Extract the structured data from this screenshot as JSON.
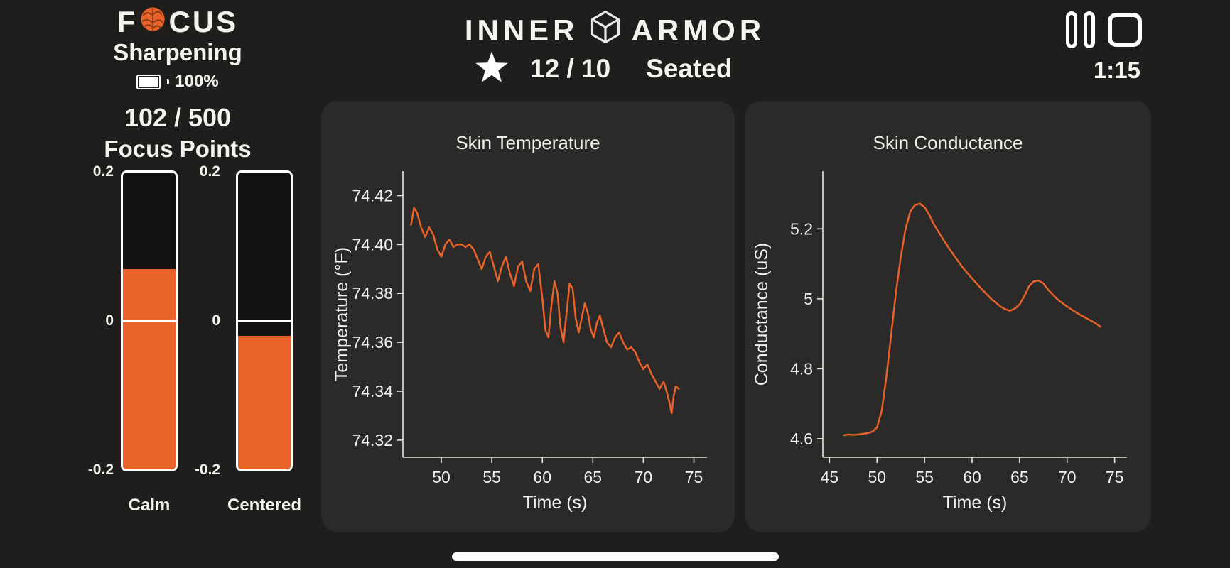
{
  "left_panel": {
    "brand_f": "F",
    "brand_cus": "CUS",
    "mode": "Sharpening",
    "battery": "100%",
    "points_value": "102 / 500",
    "points_label": "Focus Points"
  },
  "header": {
    "title_left": "INNER",
    "title_right": "ARMOR",
    "score": "12 / 10",
    "posture": "Seated",
    "timer": "1:15"
  },
  "gauges": {
    "scale_top": "0.2",
    "scale_zero": "0",
    "scale_bottom": "-0.2",
    "items": [
      {
        "label": "Calm",
        "value": 0.07,
        "min": -0.2,
        "max": 0.2
      },
      {
        "label": "Centered",
        "value": -0.02,
        "min": -0.2,
        "max": 0.2
      }
    ]
  },
  "colors": {
    "accent_orange": "#E8622A",
    "background": "#201E1C",
    "card_background": "#2C2A28",
    "text": "#F5F3F0"
  },
  "icons": {
    "brain": "brain-icon",
    "cube": "cube-icon",
    "star": "star-icon",
    "pause": "pause-icon",
    "stop": "stop-icon",
    "battery": "battery-icon"
  },
  "chart_data": [
    {
      "type": "line",
      "title": "Skin Temperature",
      "xlabel": "Time (s)",
      "ylabel": "Temperature (°F)",
      "xlim": [
        46.2,
        76.3
      ],
      "ylim": [
        74.313,
        74.43
      ],
      "xticks": [
        50,
        55,
        60,
        65,
        70,
        75
      ],
      "xtick_labels": [
        "50",
        "55",
        "60",
        "65",
        "70",
        "75"
      ],
      "yticks": [
        74.32,
        74.34,
        74.36,
        74.38,
        74.4,
        74.42
      ],
      "ytick_labels": [
        "74.32",
        "74.34",
        "74.36",
        "74.38",
        "74.40",
        "74.42"
      ],
      "line_color": "#E8622A",
      "grid": false,
      "legend": false,
      "x": [
        47.0,
        47.3,
        47.6,
        48.0,
        48.4,
        48.8,
        49.2,
        49.6,
        50.0,
        50.4,
        50.8,
        51.2,
        51.6,
        52.0,
        52.4,
        52.8,
        53.2,
        53.6,
        54.0,
        54.4,
        54.8,
        55.2,
        55.6,
        56.0,
        56.4,
        56.8,
        57.2,
        57.6,
        58.0,
        58.4,
        58.8,
        59.2,
        59.6,
        60.0,
        60.3,
        60.6,
        60.9,
        61.2,
        61.5,
        61.8,
        62.1,
        62.4,
        62.7,
        63.0,
        63.3,
        63.6,
        63.9,
        64.2,
        64.5,
        64.8,
        65.1,
        65.4,
        65.7,
        66.0,
        66.4,
        66.8,
        67.2,
        67.6,
        68.0,
        68.4,
        68.8,
        69.2,
        69.6,
        70.0,
        70.4,
        70.8,
        71.2,
        71.6,
        72.0,
        72.3,
        72.6,
        72.8,
        73.0,
        73.2,
        73.5
      ],
      "y": [
        74.408,
        74.415,
        74.413,
        74.407,
        74.403,
        74.407,
        74.404,
        74.398,
        74.395,
        74.4,
        74.402,
        74.399,
        74.4,
        74.4,
        74.399,
        74.4,
        74.398,
        74.394,
        74.39,
        74.395,
        74.397,
        74.391,
        74.385,
        74.391,
        74.395,
        74.388,
        74.383,
        74.391,
        74.393,
        74.385,
        74.381,
        74.39,
        74.392,
        74.378,
        74.365,
        74.362,
        74.375,
        74.385,
        74.38,
        74.366,
        74.36,
        74.372,
        74.384,
        74.382,
        74.37,
        74.364,
        74.37,
        74.376,
        74.372,
        74.365,
        74.362,
        74.368,
        74.371,
        74.366,
        74.36,
        74.358,
        74.362,
        74.364,
        74.36,
        74.357,
        74.358,
        74.356,
        74.352,
        74.349,
        74.351,
        74.347,
        74.344,
        74.341,
        74.344,
        74.34,
        74.335,
        74.331,
        74.338,
        74.342,
        74.341
      ]
    },
    {
      "type": "line",
      "title": "Skin Conductance",
      "xlabel": "Time (s)",
      "ylabel": "Conductance (uS)",
      "xlim": [
        44.3,
        76.3
      ],
      "ylim": [
        4.547,
        5.365
      ],
      "xticks": [
        45,
        50,
        55,
        60,
        65,
        70,
        75
      ],
      "xtick_labels": [
        "45",
        "50",
        "55",
        "60",
        "65",
        "70",
        "75"
      ],
      "yticks": [
        4.6,
        4.8,
        5.0,
        5.2
      ],
      "ytick_labels": [
        "4.6",
        "4.8",
        "5",
        "5.2"
      ],
      "line_color": "#E8622A",
      "grid": false,
      "legend": false,
      "x": [
        46.5,
        47,
        47.5,
        48,
        48.5,
        49,
        49.5,
        50,
        50.5,
        51,
        51.5,
        52,
        52.5,
        53,
        53.5,
        54,
        54.5,
        55,
        55.5,
        56,
        56.5,
        57,
        58,
        59,
        60,
        61,
        62,
        63,
        63.5,
        64,
        64.5,
        65,
        65.5,
        66,
        66.5,
        67,
        67.5,
        68,
        69,
        70,
        71,
        72,
        73,
        73.5
      ],
      "y": [
        4.61,
        4.612,
        4.611,
        4.612,
        4.614,
        4.616,
        4.62,
        4.632,
        4.68,
        4.78,
        4.9,
        5.02,
        5.12,
        5.2,
        5.25,
        5.268,
        5.272,
        5.262,
        5.24,
        5.212,
        5.19,
        5.168,
        5.128,
        5.09,
        5.058,
        5.028,
        5.0,
        4.978,
        4.97,
        4.966,
        4.972,
        4.984,
        5.008,
        5.036,
        5.05,
        5.052,
        5.044,
        5.026,
        4.998,
        4.978,
        4.96,
        4.945,
        4.93,
        4.92
      ]
    }
  ]
}
